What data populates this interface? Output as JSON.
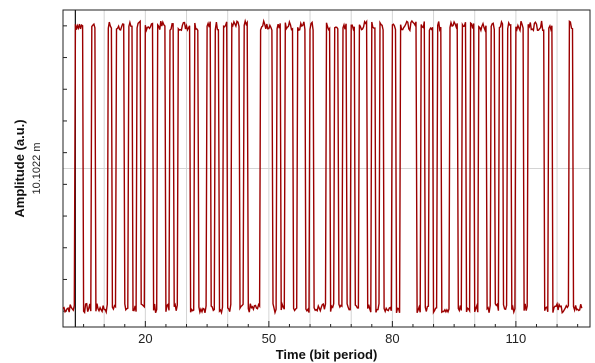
{
  "chart_data": {
    "type": "line",
    "title": "",
    "xlabel": "Time (bit period)",
    "ylabel": "Amplitude (a.u.)",
    "ytick_label": "10.1022 m",
    "xticks": [
      20,
      50,
      80,
      110
    ],
    "xlim": [
      0,
      128
    ],
    "ylim": [
      0,
      20.2
    ],
    "grid": true,
    "line_color": "#9b0000",
    "series": [
      {
        "bits": [
          0,
          0,
          0,
          1,
          1,
          0,
          0,
          1,
          0,
          0,
          0,
          1,
          0,
          1,
          1,
          0,
          1,
          0,
          1,
          0,
          1,
          1,
          0,
          1,
          1,
          0,
          1,
          0,
          1,
          1,
          1,
          0,
          1,
          0,
          0,
          1,
          0,
          1,
          0,
          1,
          0,
          1,
          1,
          0,
          1,
          0,
          0,
          0,
          1,
          1,
          1,
          0,
          1,
          0,
          1,
          1,
          0,
          1,
          1,
          0,
          1,
          0,
          0,
          0,
          1,
          0,
          1,
          0,
          1,
          0,
          1,
          0,
          1,
          1,
          0,
          1,
          0,
          1,
          0,
          0,
          1,
          0,
          1,
          1,
          1,
          1,
          0,
          1,
          0,
          1,
          0,
          1,
          0,
          0,
          1,
          1,
          0,
          1,
          0,
          1,
          0,
          1,
          1,
          0,
          1,
          0,
          1,
          0,
          1,
          0,
          1,
          1,
          0,
          1,
          1,
          1,
          1,
          0,
          1,
          0,
          0,
          0,
          0,
          1,
          0,
          0
        ],
        "high_level": 19.2,
        "low_level": 1.2
      }
    ]
  }
}
